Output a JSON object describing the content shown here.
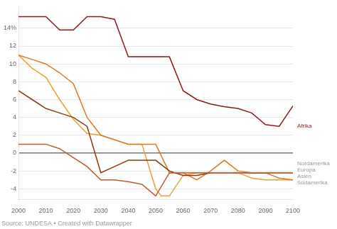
{
  "chart_data": {
    "type": "line",
    "source": "Source: UNDESA • Created with Datawrapper",
    "series": [
      {
        "name": "Afrika",
        "color": "#8B1A1A",
        "x": [
          2000,
          2005,
          2010,
          2015,
          2020,
          2025,
          2030,
          2035,
          2040,
          2045,
          2050,
          2055,
          2060,
          2065,
          2070,
          2075,
          2080,
          2085,
          2090,
          2095,
          2100
        ],
        "values": [
          15.3,
          15.3,
          15.3,
          13.8,
          13.8,
          15.3,
          15.3,
          15.0,
          10.8,
          10.8,
          10.8,
          10.8,
          7.0,
          6.0,
          5.5,
          5.2,
          5.0,
          4.5,
          3.2,
          3.0,
          5.3
        ]
      },
      {
        "name": "Nordamerika",
        "color": "#C05A2A",
        "x": [
          2000,
          2005,
          2010,
          2015,
          2020,
          2025,
          2030,
          2035,
          2040,
          2045,
          2050,
          2055,
          2060,
          2065,
          2070,
          2075,
          2080,
          2085,
          2090,
          2095,
          2100
        ],
        "values": [
          1.0,
          1.0,
          1.0,
          0.5,
          -0.5,
          -1.5,
          -3.0,
          -3.0,
          -3.2,
          -3.5,
          -4.8,
          -2.2,
          -2.2,
          -2.2,
          -2.2,
          -2.2,
          -2.2,
          -2.2,
          -2.2,
          -2.2,
          -2.2
        ]
      },
      {
        "name": "Europa",
        "color": "#8B3A0F",
        "x": [
          2000,
          2005,
          2010,
          2015,
          2020,
          2025,
          2030,
          2035,
          2040,
          2045,
          2050,
          2055,
          2060,
          2065,
          2070,
          2075,
          2080,
          2085,
          2090,
          2095,
          2100
        ],
        "values": [
          7.0,
          6.0,
          5.0,
          4.5,
          4.0,
          3.0,
          -2.2,
          -1.5,
          -0.8,
          -0.8,
          -0.8,
          -2.0,
          -2.5,
          -2.5,
          -2.2,
          -2.2,
          -2.2,
          -2.2,
          -2.2,
          -2.2,
          -2.2
        ]
      },
      {
        "name": "Asien",
        "color": "#E07820",
        "x": [
          2000,
          2005,
          2010,
          2015,
          2020,
          2025,
          2030,
          2035,
          2040,
          2045,
          2050,
          2055,
          2060,
          2065,
          2070,
          2075,
          2080,
          2085,
          2090,
          2095,
          2100
        ],
        "values": [
          11.0,
          10.5,
          10.0,
          9.0,
          7.8,
          4.0,
          2.0,
          1.5,
          1.0,
          1.0,
          1.0,
          -2.2,
          -2.2,
          -3.0,
          -2.0,
          -0.8,
          -2.0,
          -2.2,
          -2.2,
          -2.8,
          -3.0
        ]
      },
      {
        "name": "Südamerika",
        "color": "#F0A030",
        "x": [
          2000,
          2005,
          2010,
          2015,
          2020,
          2025,
          2030,
          2035,
          2040,
          2045,
          2050,
          2052,
          2055,
          2060,
          2065,
          2070,
          2075,
          2080,
          2085,
          2090,
          2095,
          2100
        ],
        "values": [
          11.0,
          9.5,
          8.5,
          6.0,
          3.8,
          2.2,
          2.0,
          1.5,
          1.0,
          1.0,
          -4.0,
          -4.8,
          -4.8,
          -2.5,
          -2.2,
          -2.2,
          -2.2,
          -2.2,
          -2.8,
          -3.0,
          -3.0,
          -3.0
        ]
      }
    ],
    "annotations": [
      {
        "text": "Afrika",
        "x": 2100,
        "y": 3.0,
        "color": "#8B1A1A"
      },
      {
        "text": "Nordamerika",
        "x": 2100,
        "y": -1.2,
        "color": "#999999"
      },
      {
        "text": "Europa",
        "x": 2100,
        "y": -1.9,
        "color": "#999999"
      },
      {
        "text": "Asien",
        "x": 2100,
        "y": -2.6,
        "color": "#999999"
      },
      {
        "text": "Südamerika",
        "x": 2100,
        "y": -3.3,
        "color": "#999999"
      }
    ],
    "xlim": [
      2000,
      2100
    ],
    "xticks": [
      2000,
      2010,
      2020,
      2030,
      2040,
      2050,
      2060,
      2070,
      2080,
      2090,
      2100
    ],
    "ylim": [
      -5.2,
      16.5
    ],
    "yticks": [
      -4,
      -2,
      0,
      2,
      4,
      6,
      8,
      10,
      12,
      {
        "value": 14,
        "label": "14%"
      }
    ],
    "grid": true
  }
}
